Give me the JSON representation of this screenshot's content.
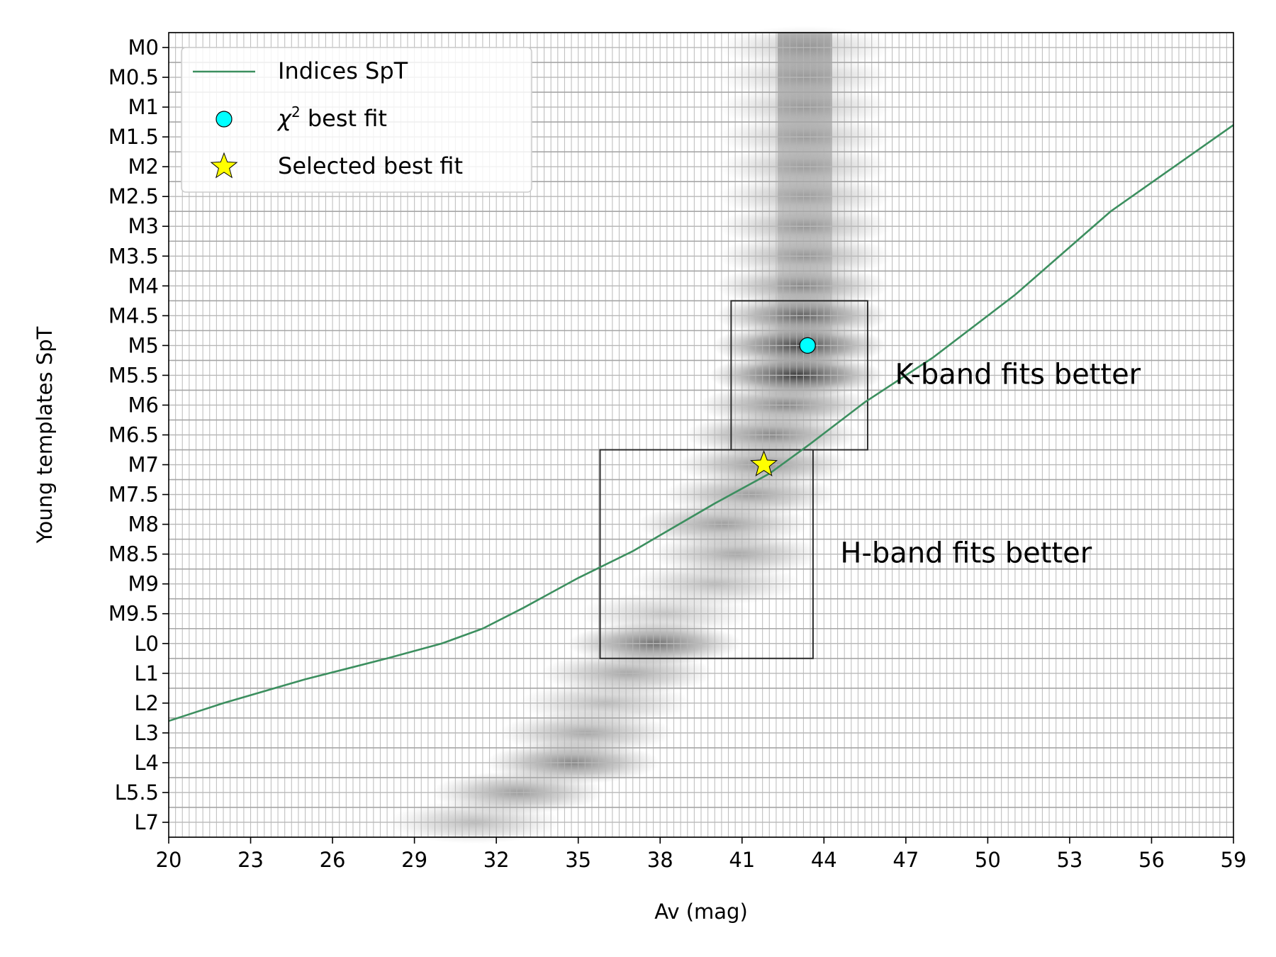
{
  "chart_data": {
    "type": "heatmap",
    "xlabel": "Av (mag)",
    "ylabel": "Young templates SpT",
    "xlim": [
      20,
      59
    ],
    "x_ticks": [
      20,
      23,
      26,
      29,
      32,
      35,
      38,
      41,
      44,
      47,
      50,
      53,
      56,
      59
    ],
    "y_categories": [
      "M0",
      "M0.5",
      "M1",
      "M1.5",
      "M2",
      "M2.5",
      "M3",
      "M3.5",
      "M4",
      "M4.5",
      "M5",
      "M5.5",
      "M6",
      "M6.5",
      "M7",
      "M7.5",
      "M8",
      "M8.5",
      "M9",
      "M9.5",
      "L0",
      "L1",
      "L2",
      "L3",
      "L4",
      "L5.5",
      "L7"
    ],
    "grid": true,
    "heatmap_ridge": [
      {
        "spt": "M0",
        "av": 43.3,
        "strength": 0.25
      },
      {
        "spt": "M0.5",
        "av": 43.3,
        "strength": 0.25
      },
      {
        "spt": "M1",
        "av": 43.3,
        "strength": 0.27
      },
      {
        "spt": "M1.5",
        "av": 43.3,
        "strength": 0.28
      },
      {
        "spt": "M2",
        "av": 43.3,
        "strength": 0.3
      },
      {
        "spt": "M2.5",
        "av": 43.3,
        "strength": 0.32
      },
      {
        "spt": "M3",
        "av": 43.3,
        "strength": 0.38
      },
      {
        "spt": "M3.5",
        "av": 43.3,
        "strength": 0.4
      },
      {
        "spt": "M4",
        "av": 43.2,
        "strength": 0.5
      },
      {
        "spt": "M4.5",
        "av": 43.2,
        "strength": 0.7
      },
      {
        "spt": "M5",
        "av": 43.1,
        "strength": 0.85
      },
      {
        "spt": "M5.5",
        "av": 43.0,
        "strength": 0.9
      },
      {
        "spt": "M6",
        "av": 42.6,
        "strength": 0.55
      },
      {
        "spt": "M6.5",
        "av": 42.1,
        "strength": 0.55
      },
      {
        "spt": "M7",
        "av": 41.8,
        "strength": 0.5
      },
      {
        "spt": "M7.5",
        "av": 41.3,
        "strength": 0.45
      },
      {
        "spt": "M8",
        "av": 40.3,
        "strength": 0.45
      },
      {
        "spt": "M8.5",
        "av": 40.8,
        "strength": 0.4
      },
      {
        "spt": "M9",
        "av": 40.0,
        "strength": 0.3
      },
      {
        "spt": "M9.5",
        "av": 38.2,
        "strength": 0.25
      },
      {
        "spt": "L0",
        "av": 37.8,
        "strength": 0.65
      },
      {
        "spt": "L1",
        "av": 36.8,
        "strength": 0.4
      },
      {
        "spt": "L2",
        "av": 36.0,
        "strength": 0.3
      },
      {
        "spt": "L3",
        "av": 35.3,
        "strength": 0.4
      },
      {
        "spt": "L4",
        "av": 34.8,
        "strength": 0.55
      },
      {
        "spt": "L5.5",
        "av": 32.8,
        "strength": 0.45
      },
      {
        "spt": "L7",
        "av": 31.2,
        "strength": 0.3
      }
    ],
    "series": [
      {
        "name": "Indices SpT",
        "type": "line",
        "color": "#3c8f5f",
        "points": [
          {
            "av": 20,
            "spt_index": 22.6
          },
          {
            "av": 22,
            "spt_index": 22.0
          },
          {
            "av": 25,
            "spt_index": 21.2
          },
          {
            "av": 28,
            "spt_index": 20.5
          },
          {
            "av": 30,
            "spt_index": 20.0
          },
          {
            "av": 31.5,
            "spt_index": 19.5
          },
          {
            "av": 33,
            "spt_index": 18.8
          },
          {
            "av": 35,
            "spt_index": 17.8
          },
          {
            "av": 37,
            "spt_index": 16.9
          },
          {
            "av": 40,
            "spt_index": 15.3
          },
          {
            "av": 42,
            "spt_index": 14.3
          },
          {
            "av": 43.5,
            "spt_index": 13.3
          },
          {
            "av": 45.5,
            "spt_index": 11.9
          },
          {
            "av": 48,
            "spt_index": 10.4
          },
          {
            "av": 51,
            "spt_index": 8.3
          },
          {
            "av": 54.5,
            "spt_index": 5.5
          },
          {
            "av": 59,
            "spt_index": 2.6
          }
        ]
      },
      {
        "name": "$\\chi^2$ best fit",
        "type": "scatter",
        "marker": "circle",
        "color": "#00ffff",
        "points": [
          {
            "av": 43.4,
            "spt": "M5"
          }
        ]
      },
      {
        "name": "Selected best fit",
        "type": "scatter",
        "marker": "star",
        "color": "#ffff00",
        "points": [
          {
            "av": 41.8,
            "spt": "M7"
          }
        ]
      }
    ],
    "legend": {
      "placement": "top-left",
      "entries": [
        {
          "marker": "line",
          "color": "#3c8f5f",
          "label": "Indices SpT"
        },
        {
          "marker": "circle",
          "color": "#00ffff",
          "label_chi": "χ",
          "label_sup": "2",
          "label_rest": " best fit"
        },
        {
          "marker": "star",
          "color": "#ffff00",
          "label": "Selected best fit"
        }
      ]
    },
    "boxes": [
      {
        "name": "K-band",
        "av_range": [
          40.6,
          45.6
        ],
        "spt_range": [
          "M4.5",
          "M6.5"
        ]
      },
      {
        "name": "H-band",
        "av_range": [
          35.8,
          43.6
        ],
        "spt_range": [
          "M7",
          "L0"
        ]
      }
    ],
    "annotations": [
      {
        "text": "K-band fits better",
        "av": 46.6,
        "spt": "M5.5"
      },
      {
        "text": "H-band fits better",
        "av": 44.6,
        "spt": "M8.5"
      }
    ]
  }
}
